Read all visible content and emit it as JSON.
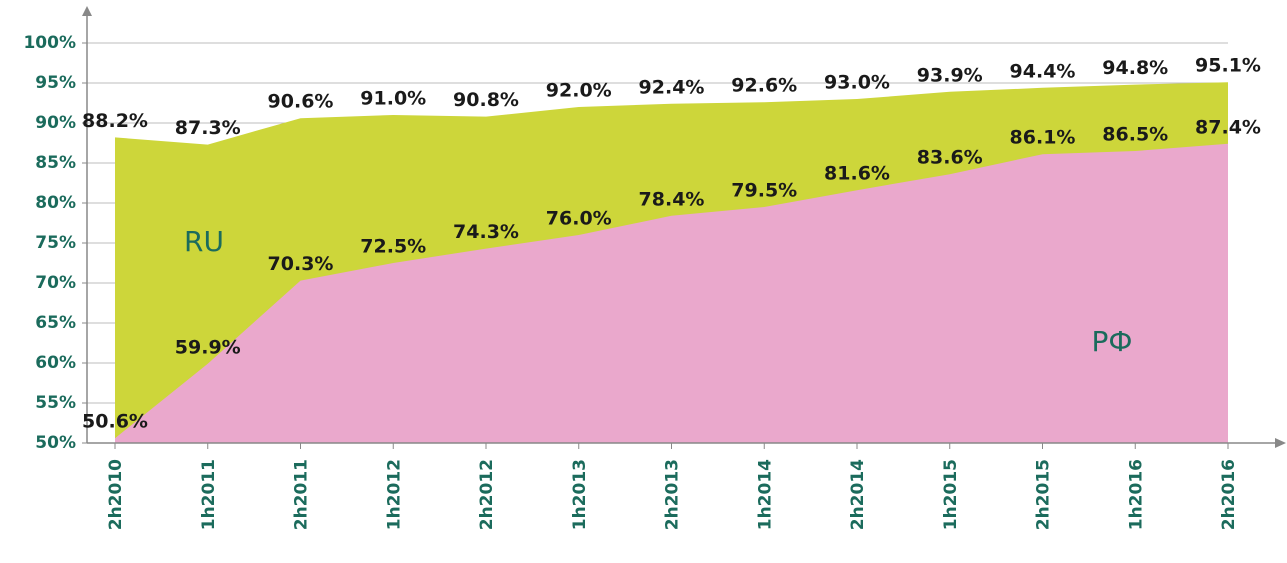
{
  "chart_data": {
    "type": "area",
    "categories": [
      "2h2010",
      "1h2011",
      "2h2011",
      "1h2012",
      "2h2012",
      "1h2013",
      "2h2013",
      "1h2014",
      "2h2014",
      "1h2015",
      "2h2015",
      "1h2016",
      "2h2016"
    ],
    "series": [
      {
        "name": "RU",
        "color": "#cdd63a",
        "values": [
          88.2,
          87.3,
          90.6,
          91.0,
          90.8,
          92.0,
          92.4,
          92.6,
          93.0,
          93.9,
          94.4,
          94.8,
          95.1
        ],
        "value_labels": [
          "88.2%",
          "87.3%",
          "90.6%",
          "91.0%",
          "90.8%",
          "92.0%",
          "92.4%",
          "92.6%",
          "93.0%",
          "93.9%",
          "94.4%",
          "94.8%",
          "95.1%"
        ]
      },
      {
        "name": "РФ",
        "color": "#eaa8cc",
        "values": [
          50.6,
          59.9,
          70.3,
          72.5,
          74.3,
          76.0,
          78.4,
          79.5,
          81.6,
          83.6,
          86.1,
          86.5,
          87.4
        ],
        "value_labels": [
          "50.6%",
          "59.9%",
          "70.3%",
          "72.5%",
          "74.3%",
          "76.0%",
          "78.4%",
          "79.5%",
          "81.6%",
          "83.6%",
          "86.1%",
          "86.5%",
          "87.4%"
        ]
      }
    ],
    "ylim": [
      50,
      100
    ],
    "yticks": [
      {
        "value": 50,
        "label": "50%"
      },
      {
        "value": 55,
        "label": "55%"
      },
      {
        "value": 60,
        "label": "60%"
      },
      {
        "value": 65,
        "label": "65%"
      },
      {
        "value": 70,
        "label": "70%"
      },
      {
        "value": 75,
        "label": "75%"
      },
      {
        "value": 80,
        "label": "80%"
      },
      {
        "value": 85,
        "label": "85%"
      },
      {
        "value": 90,
        "label": "90%"
      },
      {
        "value": 95,
        "label": "95%"
      },
      {
        "value": 100,
        "label": "100%"
      }
    ],
    "grid": true
  }
}
